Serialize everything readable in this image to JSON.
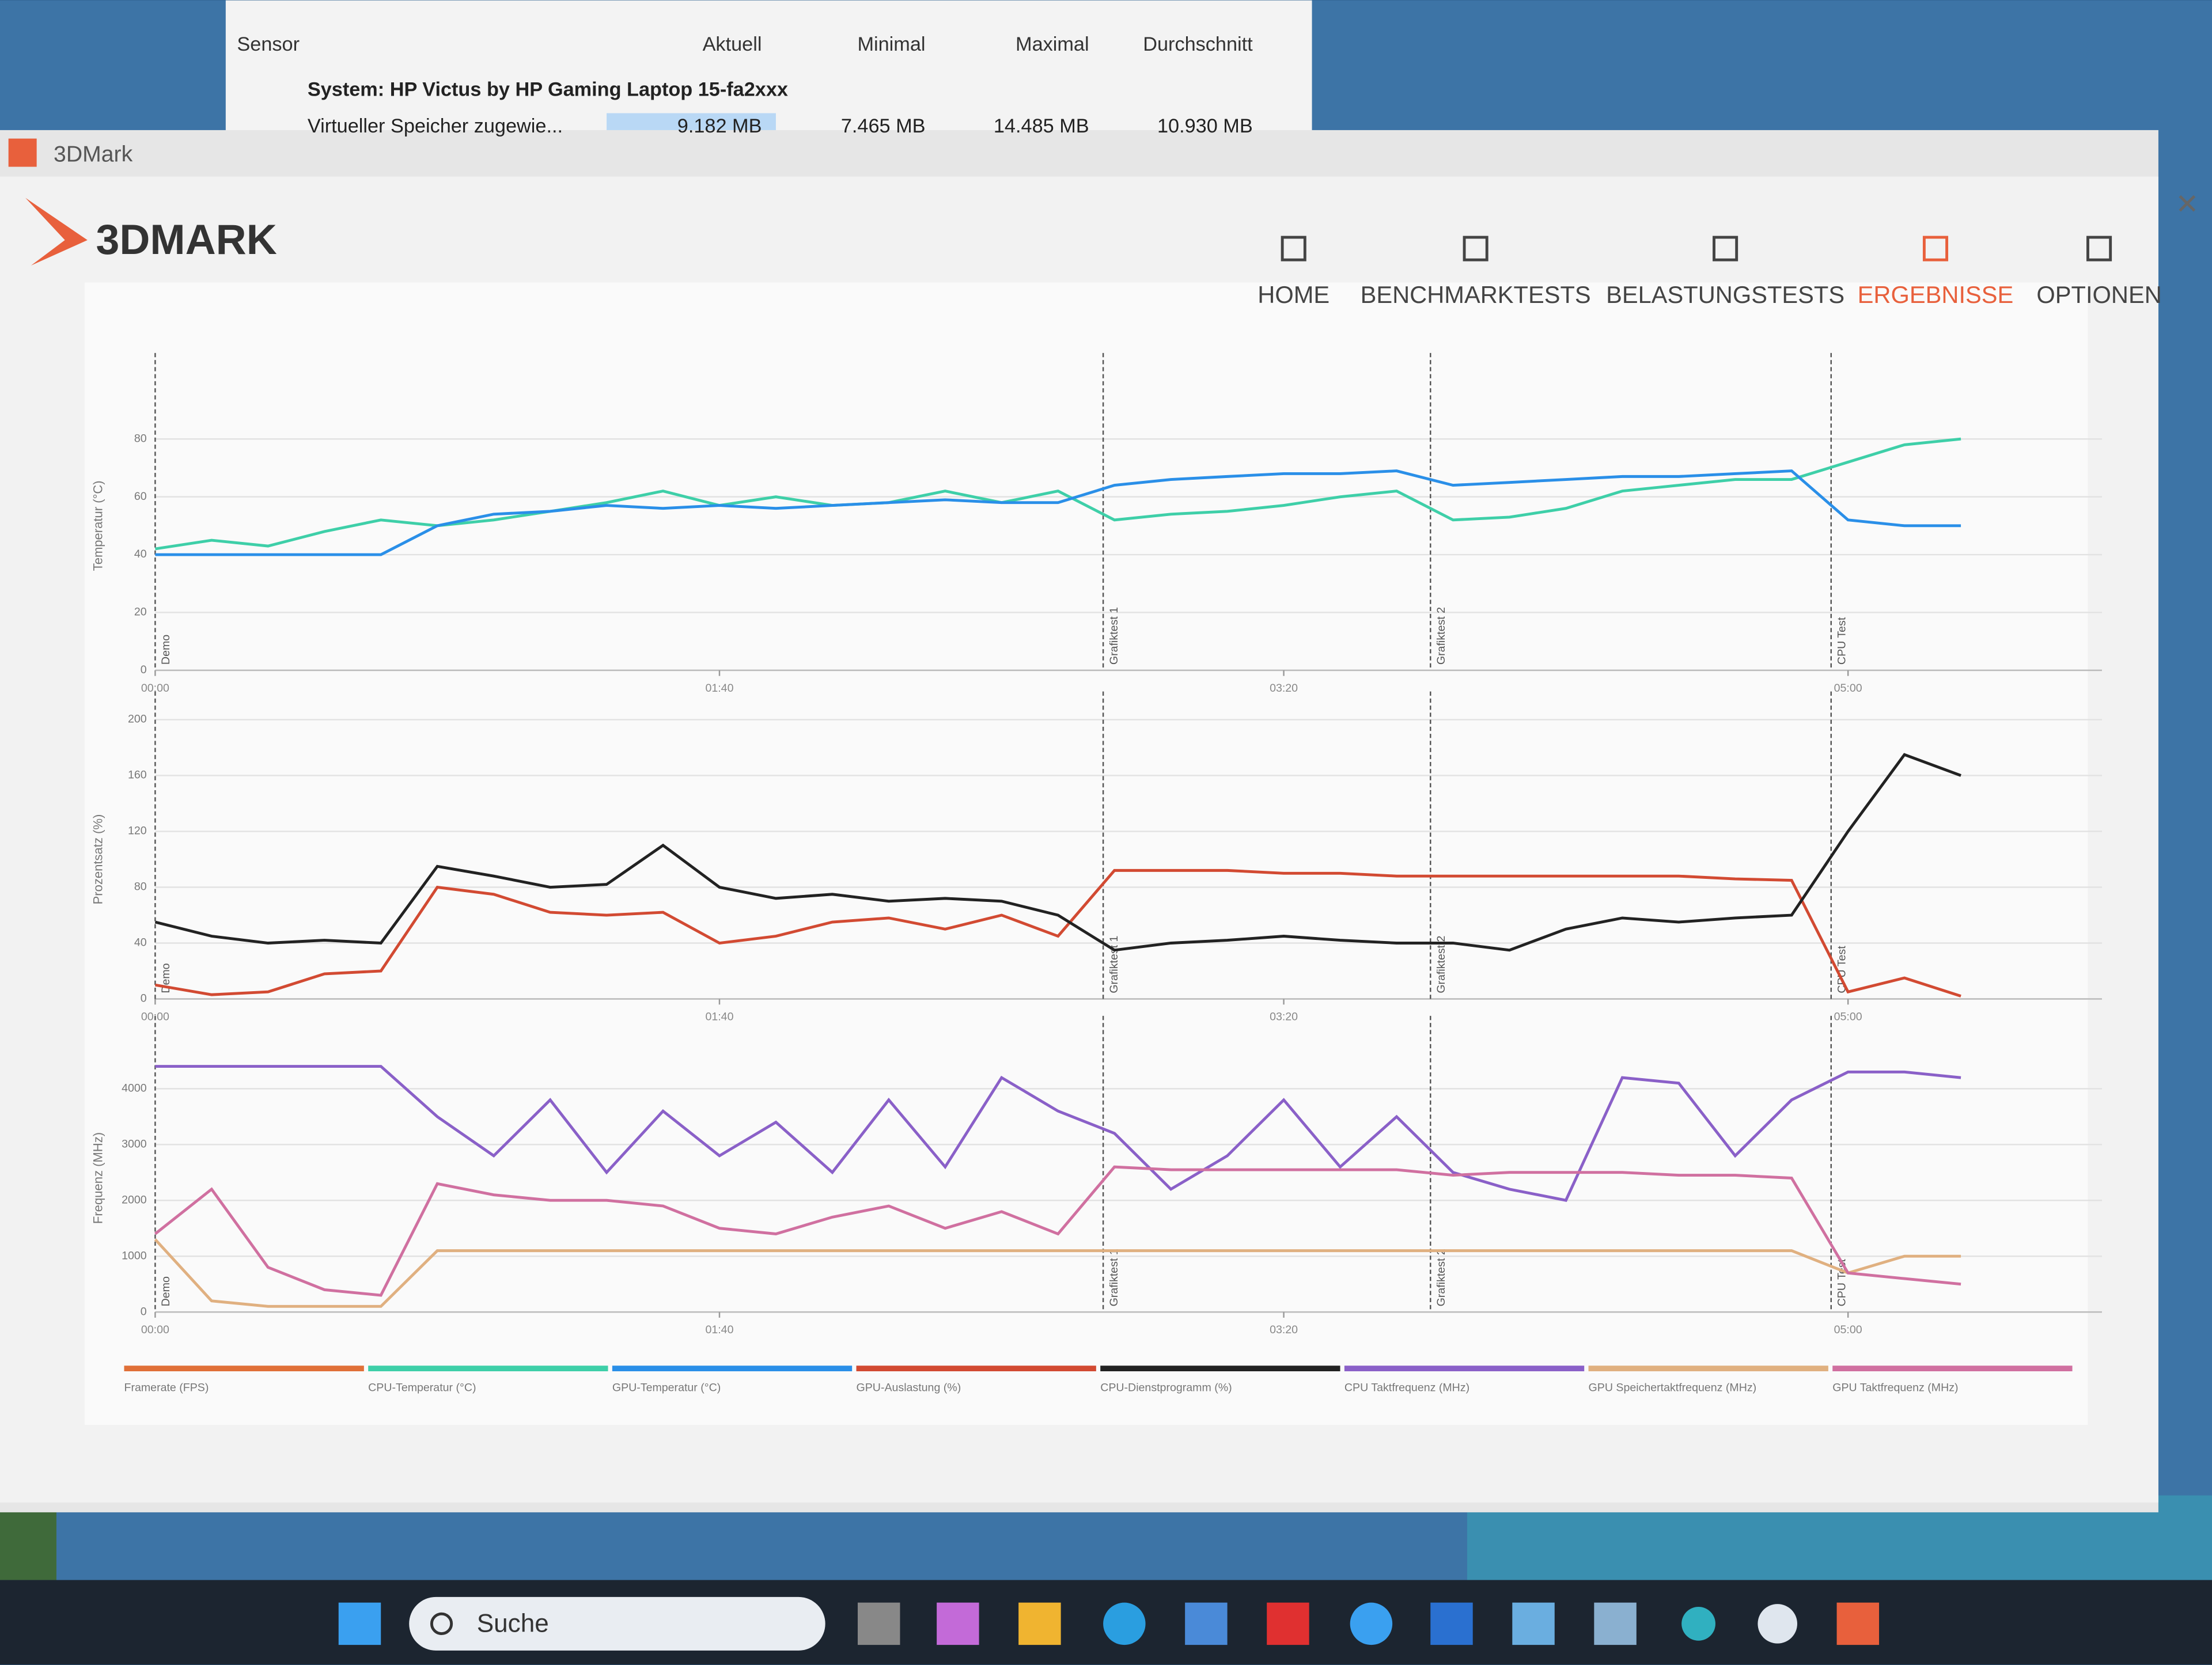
{
  "sensor_window": {
    "columns": [
      "Sensor",
      "Aktuell",
      "Minimal",
      "Maximal",
      "Durchschnitt"
    ],
    "rows": [
      [
        "System: HP Victus by HP Gaming Laptop 15-fa2xxx"
      ],
      [
        "Virtueller Speicher zugewie...",
        "9.182 MB",
        "7.465 MB",
        "14.485 MB",
        "10.930 MB"
      ]
    ]
  },
  "window": {
    "title": "3DMark"
  },
  "app": {
    "logo": "3DMARK",
    "nav": [
      "HOME",
      "BENCHMARKTESTS",
      "BELASTUNGSTESTS",
      "ERGEBNISSE",
      "OPTIONEN"
    ],
    "active_nav": 3
  },
  "legend_extra": {
    "name": "Framerate (FPS)",
    "color": "#e07038"
  },
  "taskbar": {
    "search": "Suche"
  },
  "chart_data": [
    {
      "type": "line",
      "y_label": "Temperatur (°C)",
      "x": [
        0,
        10,
        20,
        30,
        40,
        50,
        60,
        70,
        80,
        90,
        100,
        110,
        120,
        130,
        140,
        150,
        160,
        170,
        180,
        190,
        200,
        210,
        220,
        230,
        240,
        250,
        260,
        270,
        280,
        290,
        300,
        310,
        320
      ],
      "xlim": [
        0,
        345
      ],
      "xticks": [
        {
          "value": 0,
          "label": "00:00"
        },
        {
          "value": 100,
          "label": "01:40"
        },
        {
          "value": 200,
          "label": "03:20"
        },
        {
          "value": 300,
          "label": "05:00"
        }
      ],
      "ylim": [
        0,
        100
      ],
      "yticks": [
        0,
        20,
        40,
        60,
        80
      ],
      "grid": true,
      "markers": [
        {
          "x": 0,
          "label": "Demo"
        },
        {
          "x": 168,
          "label": "Grafiktest 1"
        },
        {
          "x": 226,
          "label": "Grafiktest 2"
        },
        {
          "x": 297,
          "label": "CPU Test"
        }
      ],
      "series": [
        {
          "name": "CPU-Temperatur (°C)",
          "color": "#3ecfa8",
          "values": [
            42,
            45,
            43,
            48,
            52,
            50,
            52,
            55,
            58,
            62,
            57,
            60,
            57,
            58,
            62,
            58,
            62,
            52,
            54,
            55,
            57,
            60,
            62,
            52,
            53,
            56,
            62,
            64,
            66,
            66,
            72,
            78,
            80
          ]
        },
        {
          "name": "GPU-Temperatur (°C)",
          "color": "#2a8fe8",
          "values": [
            40,
            40,
            40,
            40,
            40,
            50,
            54,
            55,
            57,
            56,
            57,
            56,
            57,
            58,
            59,
            58,
            58,
            64,
            66,
            67,
            68,
            68,
            69,
            64,
            65,
            66,
            67,
            67,
            68,
            69,
            52,
            50,
            50
          ]
        }
      ]
    },
    {
      "type": "line",
      "y_label": "Prozentsatz (%)",
      "x": [
        0,
        10,
        20,
        30,
        40,
        50,
        60,
        70,
        80,
        90,
        100,
        110,
        120,
        130,
        140,
        150,
        160,
        170,
        180,
        190,
        200,
        210,
        220,
        230,
        240,
        250,
        260,
        270,
        280,
        290,
        300,
        310,
        320
      ],
      "xlim": [
        0,
        345
      ],
      "xticks": [
        {
          "value": 0,
          "label": "00:00"
        },
        {
          "value": 100,
          "label": "01:40"
        },
        {
          "value": 200,
          "label": "03:20"
        },
        {
          "value": 300,
          "label": "05:00"
        }
      ],
      "ylim": [
        0,
        200
      ],
      "yticks": [
        0,
        40,
        80,
        120,
        160,
        200
      ],
      "grid": true,
      "markers": [
        {
          "x": 0,
          "label": "Demo"
        },
        {
          "x": 168,
          "label": "Grafiktest 1"
        },
        {
          "x": 226,
          "label": "Grafiktest 2"
        },
        {
          "x": 297,
          "label": "CPU Test"
        }
      ],
      "series": [
        {
          "name": "GPU-Auslastung (%)",
          "color": "#d24a32",
          "values": [
            10,
            3,
            5,
            18,
            20,
            80,
            75,
            62,
            60,
            62,
            40,
            45,
            55,
            58,
            50,
            60,
            45,
            92,
            92,
            92,
            90,
            90,
            88,
            88,
            88,
            88,
            88,
            88,
            86,
            85,
            5,
            15,
            2
          ]
        },
        {
          "name": "CPU-Dienstprogramm (%)",
          "color": "#222222",
          "values": [
            55,
            45,
            40,
            42,
            40,
            95,
            88,
            80,
            82,
            110,
            80,
            72,
            75,
            70,
            72,
            70,
            60,
            35,
            40,
            42,
            45,
            42,
            40,
            40,
            35,
            50,
            58,
            55,
            58,
            60,
            120,
            175,
            160
          ]
        }
      ]
    },
    {
      "type": "line",
      "y_label": "Frequenz (MHz)",
      "x": [
        0,
        10,
        20,
        30,
        40,
        50,
        60,
        70,
        80,
        90,
        100,
        110,
        120,
        130,
        140,
        150,
        160,
        170,
        180,
        190,
        200,
        210,
        220,
        230,
        240,
        250,
        260,
        270,
        280,
        290,
        300,
        310,
        320
      ],
      "xlim": [
        0,
        345
      ],
      "xticks": [
        {
          "value": 0,
          "label": "00:00"
        },
        {
          "value": 100,
          "label": "01:40"
        },
        {
          "value": 200,
          "label": "03:20"
        },
        {
          "value": 300,
          "label": "05:00"
        }
      ],
      "ylim": [
        0,
        4800
      ],
      "yticks": [
        0,
        1000,
        2000,
        3000,
        4000
      ],
      "grid": true,
      "markers": [
        {
          "x": 0,
          "label": "Demo"
        },
        {
          "x": 168,
          "label": "Grafiktest 1"
        },
        {
          "x": 226,
          "label": "Grafiktest 2"
        },
        {
          "x": 297,
          "label": "CPU Test"
        }
      ],
      "series": [
        {
          "name": "CPU Taktfrequenz (MHz)",
          "color": "#8a60c8",
          "values": [
            4400,
            4400,
            4400,
            4400,
            4400,
            3500,
            2800,
            3800,
            2500,
            3600,
            2800,
            3400,
            2500,
            3800,
            2600,
            4200,
            3600,
            3200,
            2200,
            2800,
            3800,
            2600,
            3500,
            2500,
            2200,
            2000,
            4200,
            4100,
            2800,
            3800,
            4300,
            4300,
            4200
          ]
        },
        {
          "name": "GPU Speichertaktfrequenz (MHz)",
          "color": "#e0b080",
          "values": [
            1300,
            200,
            100,
            100,
            100,
            1100,
            1100,
            1100,
            1100,
            1100,
            1100,
            1100,
            1100,
            1100,
            1100,
            1100,
            1100,
            1100,
            1100,
            1100,
            1100,
            1100,
            1100,
            1100,
            1100,
            1100,
            1100,
            1100,
            1100,
            1100,
            700,
            1000,
            1000
          ]
        },
        {
          "name": "GPU Taktfrequenz (MHz)",
          "color": "#d070a0",
          "values": [
            1400,
            2200,
            800,
            400,
            300,
            2300,
            2100,
            2000,
            2000,
            1900,
            1500,
            1400,
            1700,
            1900,
            1500,
            1800,
            1400,
            2600,
            2550,
            2550,
            2550,
            2550,
            2550,
            2450,
            2500,
            2500,
            2500,
            2450,
            2450,
            2400,
            700,
            600,
            500
          ]
        }
      ]
    }
  ]
}
